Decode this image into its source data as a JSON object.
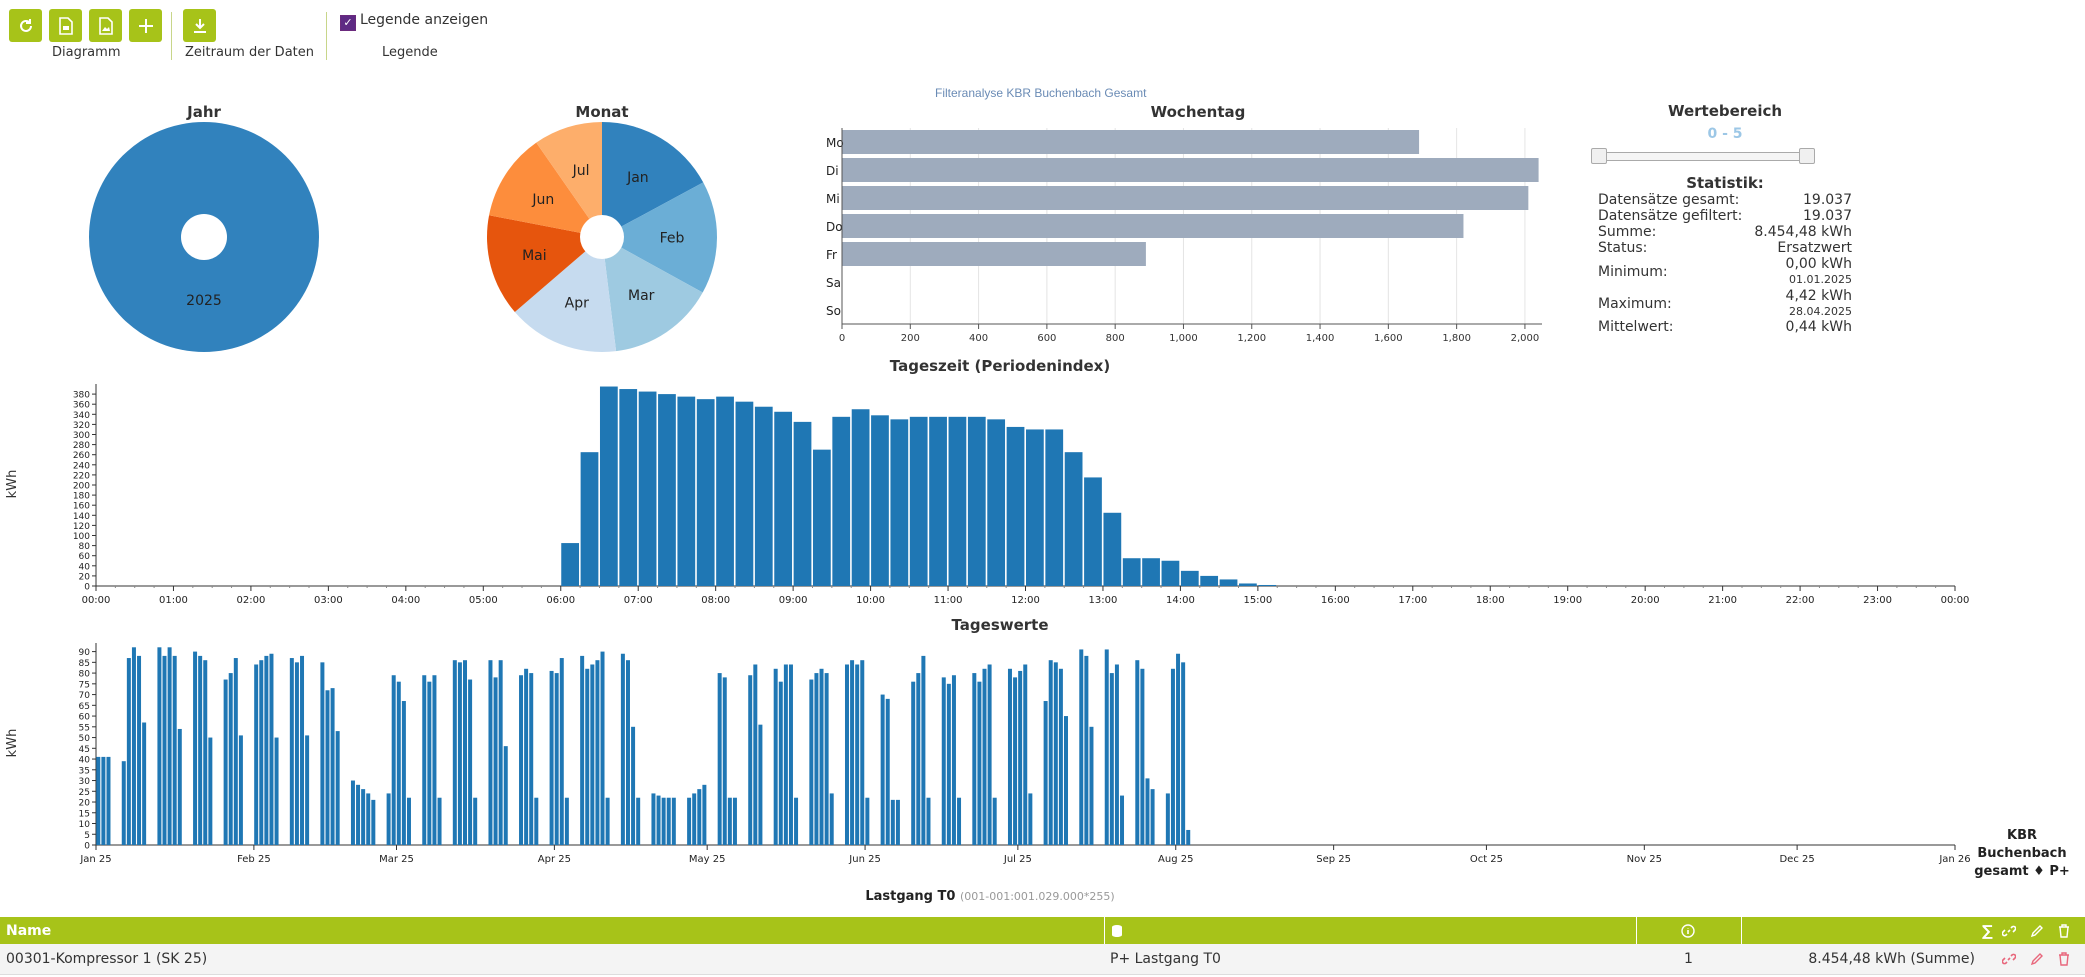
{
  "toolbar": {
    "group_diagramm": "Diagramm",
    "group_zeitraum": "Zeitraum der Daten",
    "group_legende": "Legende",
    "legend_checkbox_label": "Legende anzeigen"
  },
  "jahr": {
    "title": "Jahr",
    "slice_label": "2025",
    "color": "#3182bd"
  },
  "monat": {
    "title": "Monat",
    "chart_data": {
      "type": "pie",
      "labels": [
        "Jan",
        "Feb",
        "Mar",
        "Apr",
        "Mai",
        "Jun",
        "Jul"
      ],
      "values": [
        2760,
        2560,
        2420,
        2520,
        2310,
        1980,
        1560
      ],
      "colors": [
        "#3182bd",
        "#6baed6",
        "#9ecae1",
        "#c6dbef",
        "#e6550d",
        "#fd8d3c",
        "#fdae6b"
      ]
    }
  },
  "filter_title": "Filteranalyse KBR Buchenbach Gesamt",
  "wochentag": {
    "title": "Wochentag",
    "chart_data": {
      "type": "bar",
      "orientation": "horizontal",
      "categories": [
        "Mo",
        "Di",
        "Mi",
        "Do",
        "Fr",
        "Sa",
        "So"
      ],
      "values": [
        1690,
        2040,
        2010,
        1820,
        890,
        0,
        0
      ],
      "xticks": [
        "0",
        "200",
        "400",
        "600",
        "800",
        "1,000",
        "1,200",
        "1,400",
        "1,600",
        "1,800",
        "2,000"
      ],
      "xlim": [
        0,
        2050
      ],
      "color": "#9eabbd"
    }
  },
  "wertebereich": {
    "title": "Wertebereich",
    "range_text": "0 - 5"
  },
  "statistik": {
    "title": "Statistik:",
    "rows": [
      {
        "label": "Datensätze gesamt:",
        "value": "19.037"
      },
      {
        "label": "Datensätze gefiltert:",
        "value": "19.037"
      },
      {
        "label": "Summe:",
        "value": "8.454,48 kWh"
      },
      {
        "label": "Status:",
        "value": "Ersatzwert"
      }
    ],
    "minimum_label": "Minimum:",
    "minimum_value": "0,00 kWh",
    "minimum_date": "01.01.2025",
    "maximum_label": "Maximum:",
    "maximum_value": "4,42 kWh",
    "maximum_date": "28.04.2025",
    "mittel_label": "Mittelwert:",
    "mittel_value": "0,44 kWh"
  },
  "tageszeit": {
    "title": "Tageszeit (Periodenindex)",
    "ylabel": "kWh",
    "chart_data": {
      "type": "bar",
      "x_start_index": 24,
      "values": [
        85,
        265,
        395,
        390,
        385,
        380,
        375,
        370,
        375,
        365,
        355,
        345,
        325,
        270,
        335,
        350,
        338,
        330,
        335,
        335,
        335,
        335,
        330,
        315,
        310,
        310,
        265,
        215,
        145,
        55,
        55,
        50,
        30,
        20,
        13,
        5,
        2
      ],
      "ylim": [
        0,
        400
      ],
      "yticks": [
        0,
        20,
        40,
        60,
        80,
        100,
        120,
        140,
        160,
        180,
        200,
        220,
        240,
        260,
        280,
        300,
        320,
        340,
        360,
        380
      ],
      "xticks": [
        "00:00",
        "01:00",
        "02:00",
        "03:00",
        "04:00",
        "05:00",
        "06:00",
        "07:00",
        "08:00",
        "09:00",
        "10:00",
        "11:00",
        "12:00",
        "13:00",
        "14:00",
        "15:00",
        "16:00",
        "17:00",
        "18:00",
        "19:00",
        "20:00",
        "21:00",
        "22:00",
        "23:00",
        "00:00"
      ],
      "color": "#1f77b4"
    }
  },
  "tageswerte": {
    "title": "Tageswerte",
    "ylabel": "kWh",
    "chart_data": {
      "type": "bar",
      "x_start": "2025-01-01",
      "x_end": "2026-01-01",
      "values": [
        41,
        41,
        41,
        0,
        0,
        39,
        87,
        92,
        88,
        57,
        0,
        0,
        92,
        88,
        92,
        88,
        54,
        0,
        0,
        90,
        88,
        86,
        50,
        0,
        0,
        77,
        80,
        87,
        51,
        0,
        0,
        84,
        86,
        88,
        89,
        50,
        0,
        0,
        87,
        85,
        88,
        51,
        0,
        0,
        85,
        72,
        73,
        53,
        0,
        0,
        30,
        28,
        26,
        24,
        21,
        0,
        0,
        24,
        79,
        76,
        67,
        22,
        0,
        0,
        79,
        76,
        79,
        22,
        0,
        0,
        86,
        85,
        86,
        77,
        22,
        0,
        0,
        86,
        78,
        86,
        46,
        0,
        0,
        79,
        82,
        80,
        22,
        0,
        0,
        81,
        80,
        87,
        22,
        0,
        0,
        88,
        82,
        84,
        86,
        90,
        22,
        0,
        0,
        89,
        86,
        55,
        22,
        0,
        0,
        24,
        23,
        22,
        22,
        22,
        0,
        0,
        22,
        24,
        26,
        28,
        0,
        0,
        80,
        78,
        22,
        22,
        0,
        0,
        79,
        84,
        56,
        0,
        0,
        82,
        76,
        84,
        84,
        22,
        0,
        0,
        77,
        80,
        82,
        80,
        24,
        0,
        0,
        84,
        86,
        84,
        86,
        22,
        0,
        0,
        70,
        68,
        21,
        21,
        0,
        0,
        76,
        80,
        88,
        22,
        0,
        0,
        78,
        75,
        79,
        22,
        0,
        0,
        80,
        76,
        82,
        84,
        22,
        0,
        0,
        82,
        78,
        81,
        84,
        24,
        0,
        0,
        67,
        86,
        85,
        82,
        60,
        0,
        0,
        91,
        88,
        55,
        0,
        0,
        91,
        80,
        84,
        23,
        0,
        0,
        86,
        82,
        31,
        26,
        0,
        0,
        24,
        82,
        89,
        85,
        7
      ],
      "ylim": [
        0,
        94
      ],
      "yticks": [
        0,
        5,
        10,
        15,
        20,
        25,
        30,
        35,
        40,
        45,
        50,
        55,
        60,
        65,
        70,
        75,
        80,
        85,
        90
      ],
      "xticks": [
        "Jan 25",
        "Feb 25",
        "Mar 25",
        "Apr 25",
        "May 25",
        "Jun 25",
        "Jul 25",
        "Aug 25",
        "Sep 25",
        "Oct 25",
        "Nov 25",
        "Dec 25",
        "Jan 26"
      ],
      "legend": [
        "KBR",
        "Buchenbach",
        "gesamt ♦ P+"
      ],
      "color": "#1f77b4"
    }
  },
  "bottom_title": "Lastgang T0",
  "bottom_subtitle": "(001-001:001.029.000*255)",
  "grid": {
    "header_name": "Name",
    "row": {
      "name": "00301-Kompressor 1 (SK 25)",
      "channel": "P+ Lastgang T0",
      "count": "1",
      "sum": "8.454,48 kWh (Summe)"
    }
  }
}
